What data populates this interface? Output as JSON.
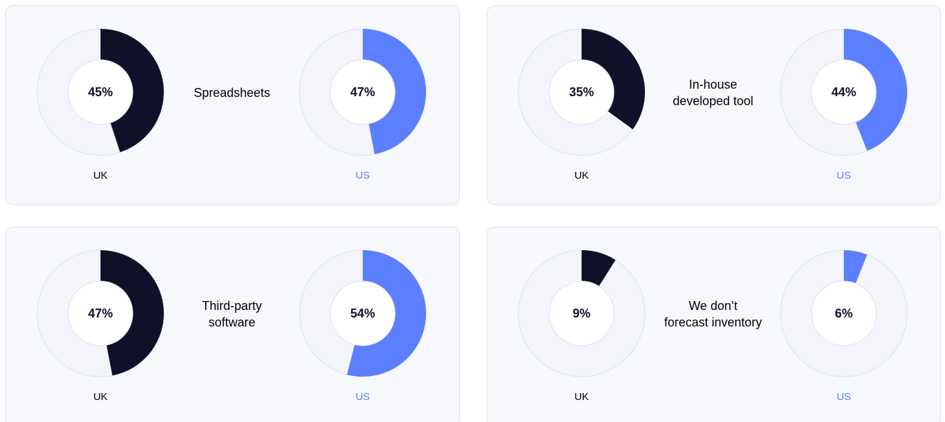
{
  "chart_data": [
    {
      "type": "donut",
      "title": [
        "Spreadsheets"
      ],
      "categories": [
        "UK",
        "US"
      ],
      "values": [
        45,
        47
      ],
      "value_labels": [
        "45%",
        "47%"
      ],
      "colors": [
        "#0f1128",
        "#5b7fff"
      ]
    },
    {
      "type": "donut",
      "title": [
        "In-house",
        "developed tool"
      ],
      "categories": [
        "UK",
        "US"
      ],
      "values": [
        35,
        44
      ],
      "value_labels": [
        "35%",
        "44%"
      ],
      "colors": [
        "#0f1128",
        "#5b7fff"
      ]
    },
    {
      "type": "donut",
      "title": [
        "Third-party",
        "software"
      ],
      "categories": [
        "UK",
        "US"
      ],
      "values": [
        47,
        54
      ],
      "value_labels": [
        "47%",
        "54%"
      ],
      "colors": [
        "#0f1128",
        "#5b7fff"
      ]
    },
    {
      "type": "donut",
      "title": [
        "We don’t",
        "forecast inventory"
      ],
      "categories": [
        "UK",
        "US"
      ],
      "values": [
        9,
        6
      ],
      "value_labels": [
        "9%",
        "6%"
      ],
      "colors": [
        "#0f1128",
        "#5b7fff"
      ]
    }
  ]
}
